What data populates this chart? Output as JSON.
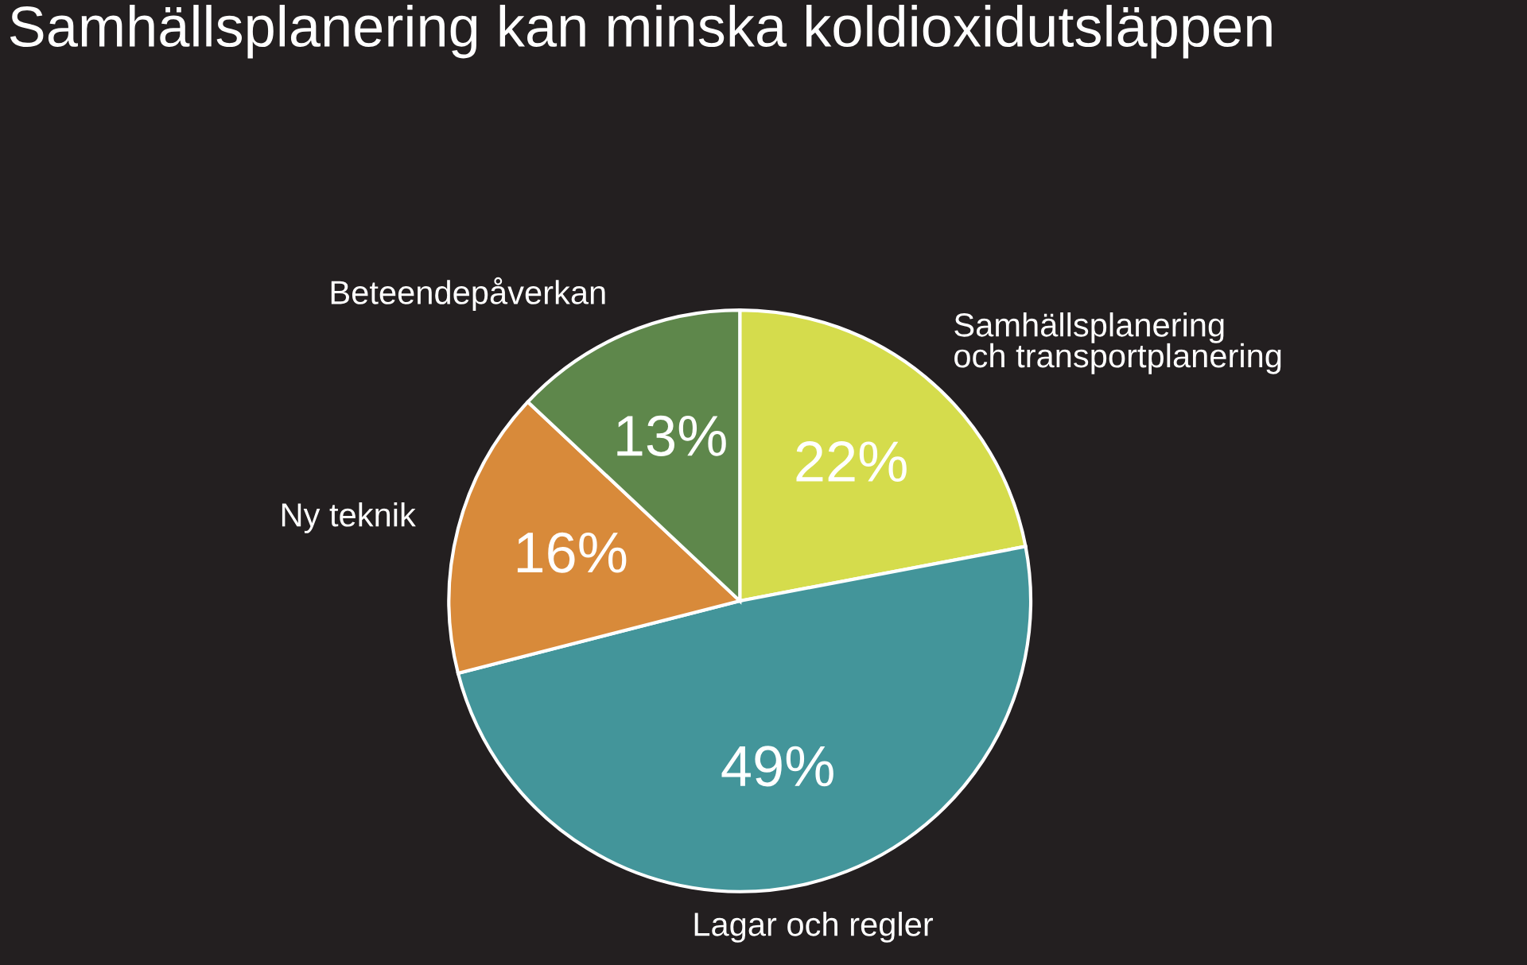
{
  "chart_data": {
    "type": "pie",
    "title": "Samhällsplanering kan minska koldioxidutsläppen",
    "categories": [
      "Samhällsplanering\noch transportplanering",
      "Lagar och regler",
      "Ny teknik",
      "Beteendepåverkan"
    ],
    "values": [
      22,
      49,
      16,
      13
    ],
    "colors": [
      "#d5dc4c",
      "#43959a",
      "#d88a3a",
      "#5e874b"
    ],
    "value_labels": [
      "22%",
      "49%",
      "16%",
      "13%"
    ]
  }
}
